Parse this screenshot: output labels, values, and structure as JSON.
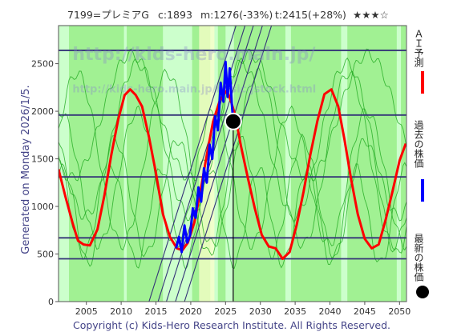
{
  "header": {
    "code_name": "7199=プレミアG",
    "current": "c:1893",
    "min": "m:1276(-33%)",
    "target": "t:2415(+28%)",
    "stars": "★★★☆"
  },
  "side_text": "Generated on Monday 2026/1/5.",
  "watermark": "http://kids-hero.main.jp/",
  "watermark2": "http://kids-hero.main.jp/basic/jstock.html",
  "copyright": "Copyright (c) Kids-Hero Research Institute. All Rights Reserved.",
  "legend": [
    {
      "label": "ＡＩ予測",
      "color": "#ff0000",
      "marker": "line"
    },
    {
      "label": "過去の株価",
      "color": "#0000ff",
      "marker": "line"
    },
    {
      "label": "最新の株価",
      "color": "#000000",
      "marker": "dot"
    }
  ],
  "colors": {
    "background": "#ccffcc",
    "green_band": "#99ee88",
    "prediction": "#ff0000",
    "history": "#0000ff",
    "reference_line": "#333377",
    "green_lines": "#22aa22"
  },
  "chart_data": {
    "type": "line",
    "xlim": [
      2001,
      2051
    ],
    "ylim": [
      0,
      2900
    ],
    "x_ticks": [
      2005,
      2010,
      2015,
      2020,
      2025,
      2030,
      2035,
      2040,
      2045,
      2050
    ],
    "y_ticks": [
      0,
      500,
      1000,
      1500,
      2000,
      2500
    ],
    "horizontal_lines": [
      450,
      670,
      1310,
      1960,
      2640
    ],
    "current_point": {
      "x": 2026.1,
      "y": 1893
    },
    "green_bands": [
      [
        2002.5,
        2010.4
      ],
      [
        2010.8,
        2016.0
      ],
      [
        2020.2,
        2022.8
      ],
      [
        2023.9,
        2025.0
      ],
      [
        2026.2,
        2033.6
      ],
      [
        2034.4,
        2041.6
      ],
      [
        2042.5,
        2049.6
      ],
      [
        2050.2,
        2050.9
      ]
    ],
    "series": [
      {
        "name": "ＡＩ予測",
        "x": [
          2001,
          2002,
          2003,
          2003.8,
          2004.6,
          2005.5,
          2006.6,
          2007.6,
          2008.6,
          2009.6,
          2010.5,
          2011.3,
          2012.1,
          2013,
          2014,
          2015,
          2016,
          2017,
          2018,
          2018.8,
          2019.6,
          2020.5,
          2021.3,
          2022.2,
          2023.2,
          2024.2,
          2025.2,
          2025.8,
          2026.4,
          2027.2,
          2028.2,
          2029.2,
          2030.2,
          2031.2,
          2032.2,
          2033.2,
          2034.2,
          2035.2,
          2036.2,
          2037.2,
          2038.2,
          2039.2,
          2040.2,
          2041.2,
          2042.1,
          2043,
          2044,
          2045,
          2046,
          2047,
          2048,
          2049,
          2050,
          2050.9
        ],
        "y": [
          1390,
          1100,
          830,
          640,
          600,
          590,
          760,
          1120,
          1550,
          1920,
          2170,
          2230,
          2170,
          2050,
          1730,
          1350,
          920,
          680,
          560,
          540,
          620,
          830,
          1120,
          1500,
          1890,
          2120,
          2220,
          2100,
          1950,
          1640,
          1300,
          980,
          700,
          580,
          560,
          450,
          520,
          800,
          1150,
          1550,
          1900,
          2180,
          2230,
          2050,
          1700,
          1300,
          920,
          660,
          560,
          600,
          860,
          1160,
          1480,
          1660
        ]
      },
      {
        "name": "過去の株価",
        "x": [
          2017.9,
          2018.3,
          2018.7,
          2019.1,
          2019.5,
          2019.9,
          2020.3,
          2020.7,
          2021.1,
          2021.5,
          2021.9,
          2022.3,
          2022.7,
          2023.1,
          2023.5,
          2023.9,
          2024.3,
          2024.7,
          2025.0,
          2025.3,
          2025.6,
          2025.9,
          2026.1
        ],
        "y": [
          560,
          680,
          520,
          800,
          620,
          700,
          980,
          880,
          1200,
          1050,
          1400,
          1250,
          1650,
          1500,
          1950,
          1800,
          2300,
          2100,
          2520,
          2150,
          2450,
          2080,
          1893
        ]
      }
    ]
  }
}
